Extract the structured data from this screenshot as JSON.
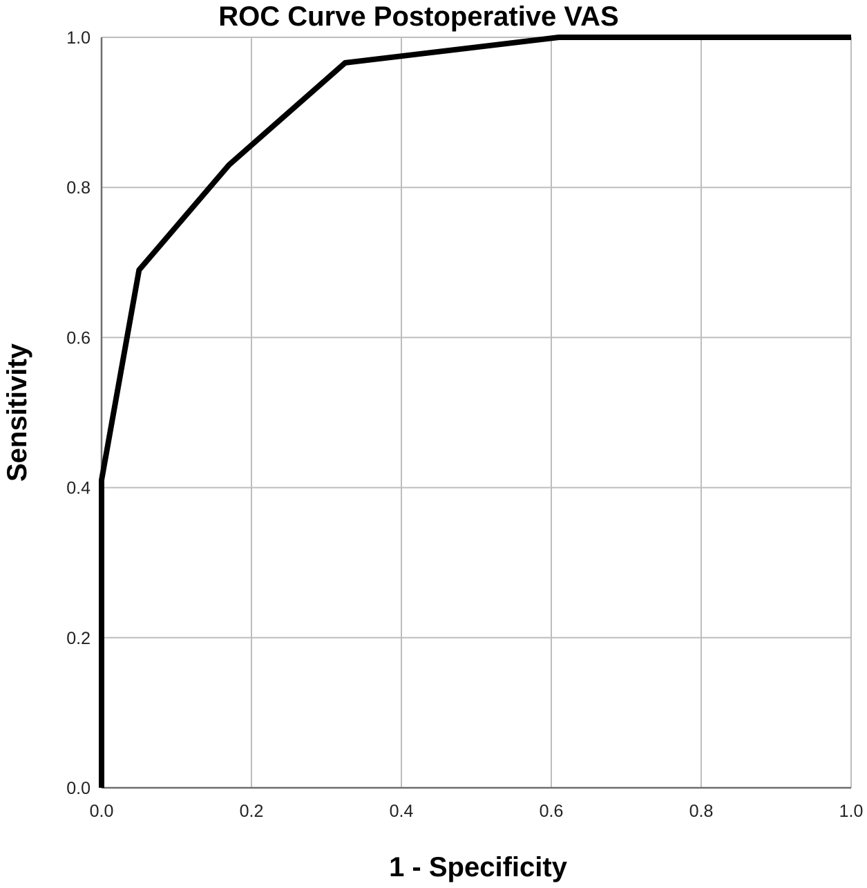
{
  "chart_data": {
    "type": "line",
    "title": "ROC Curve Postoperative VAS",
    "xlabel": "1 - Specificity",
    "ylabel": "Sensitivity",
    "xlim": [
      0,
      1
    ],
    "ylim": [
      0,
      1
    ],
    "grid": true,
    "x_ticks": [
      "0.0",
      "0.2",
      "0.4",
      "0.6",
      "0.8",
      "1.0"
    ],
    "y_ticks": [
      "0.0",
      "0.2",
      "0.4",
      "0.6",
      "0.8",
      "1.0"
    ],
    "series": [
      {
        "x": [
          0.0,
          0.0,
          0.05,
          0.17,
          0.325,
          0.61,
          0.62,
          1.0
        ],
        "y": [
          0.0,
          0.41,
          0.69,
          0.83,
          0.966,
          1.0,
          1.0,
          1.0
        ]
      }
    ],
    "colors": {
      "curve": "#000000",
      "grid": "#bdbdbd",
      "axis": "#6e6e6e"
    }
  }
}
